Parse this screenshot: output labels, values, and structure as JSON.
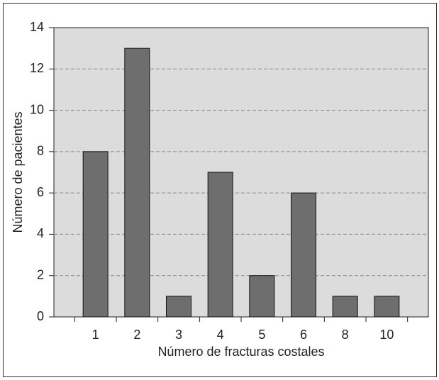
{
  "chart_data": {
    "type": "bar",
    "xlabel": "Número de fracturas costales",
    "ylabel": "Número de pacientes",
    "categories": [
      "1",
      "2",
      "3",
      "4",
      "5",
      "6",
      "8",
      "10"
    ],
    "values": [
      8,
      13,
      1,
      7,
      2,
      6,
      1,
      1
    ],
    "color": "#6e6e6e",
    "ylim": [
      0,
      14
    ],
    "yticks": [
      0,
      2,
      4,
      6,
      8,
      10,
      12,
      14
    ],
    "grid": true
  }
}
